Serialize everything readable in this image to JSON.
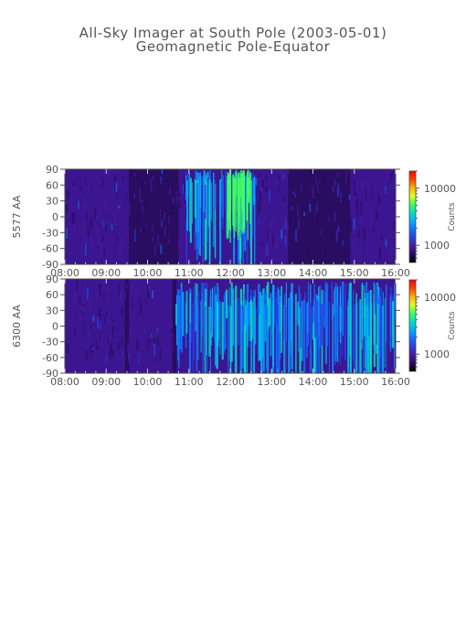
{
  "header": {
    "title": "All-Sky Imager at South Pole (2003-05-01)",
    "subtitle": "Geomagnetic Pole-Equator"
  },
  "chart_data": [
    {
      "type": "heatmap",
      "ylabel": "5577 AA",
      "x_ticks": [
        "08:00",
        "09:00",
        "10:00",
        "11:00",
        "12:00",
        "13:00",
        "14:00",
        "15:00",
        "16:00"
      ],
      "y_ticks": [
        "90",
        "60",
        "30",
        "0",
        "-30",
        "-60",
        "-90"
      ],
      "xlim": [
        "08:00",
        "16:00"
      ],
      "ylim": [
        -90,
        90
      ],
      "colorbar": {
        "label": "Counts",
        "scale": "log",
        "ticks": [
          "10000",
          "1000"
        ],
        "range": [
          500,
          20000
        ]
      },
      "bright_interval": [
        "10:55",
        "12:35"
      ],
      "background": "#3b1690"
    },
    {
      "type": "heatmap",
      "ylabel": "6300 AA",
      "x_ticks": [
        "08:00",
        "09:00",
        "10:00",
        "11:00",
        "12:00",
        "13:00",
        "14:00",
        "15:00",
        "16:00"
      ],
      "y_ticks": [
        "90",
        "60",
        "30",
        "0",
        "-30",
        "-60",
        "-90"
      ],
      "xlim": [
        "08:00",
        "16:00"
      ],
      "ylim": [
        -90,
        90
      ],
      "colorbar": {
        "label": "Counts",
        "scale": "log",
        "ticks": [
          "10000",
          "1000"
        ],
        "range": [
          500,
          20000
        ]
      },
      "bright_interval": [
        "10:40",
        "16:00"
      ],
      "background": "#3b1690"
    }
  ],
  "colormap": [
    "#000000",
    "#2a0a60",
    "#4a1aa0",
    "#2a40e0",
    "#1070ff",
    "#00b0ff",
    "#00e0c0",
    "#40ff60",
    "#e0ff20",
    "#ffb000",
    "#ff4000",
    "#ff0000"
  ]
}
